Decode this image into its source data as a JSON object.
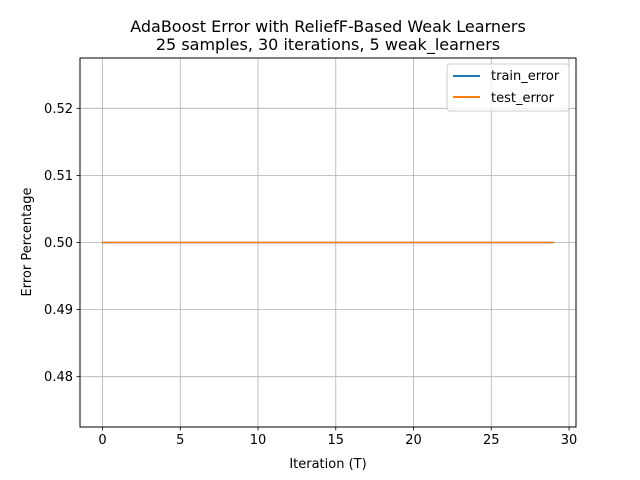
{
  "chart_data": {
    "type": "line",
    "title_line1": "AdaBoost Error with ReliefF-Based Weak Learners",
    "title_line2": "25 samples, 30 iterations, 5 weak_learners",
    "xlabel": "Iteration (T)",
    "ylabel": "Error Percentage",
    "xlim": [
      -1.45,
      30.45
    ],
    "ylim": [
      0.4725,
      0.5275
    ],
    "xticks": [
      0,
      5,
      10,
      15,
      20,
      25,
      30
    ],
    "xtick_labels": [
      "0",
      "5",
      "10",
      "15",
      "20",
      "25",
      "30"
    ],
    "yticks": [
      0.48,
      0.49,
      0.5,
      0.51,
      0.52
    ],
    "ytick_labels": [
      "0.48",
      "0.49",
      "0.50",
      "0.51",
      "0.52"
    ],
    "grid": true,
    "legend_location": "top-right",
    "x": [
      0,
      1,
      2,
      3,
      4,
      5,
      6,
      7,
      8,
      9,
      10,
      11,
      12,
      13,
      14,
      15,
      16,
      17,
      18,
      19,
      20,
      21,
      22,
      23,
      24,
      25,
      26,
      27,
      28,
      29
    ],
    "series": [
      {
        "name": "train_error",
        "color": "#1f77b4",
        "values": [
          0.5,
          0.5,
          0.5,
          0.5,
          0.5,
          0.5,
          0.5,
          0.5,
          0.5,
          0.5,
          0.5,
          0.5,
          0.5,
          0.5,
          0.5,
          0.5,
          0.5,
          0.5,
          0.5,
          0.5,
          0.5,
          0.5,
          0.5,
          0.5,
          0.5,
          0.5,
          0.5,
          0.5,
          0.5,
          0.5
        ]
      },
      {
        "name": "test_error",
        "color": "#ff7f0e",
        "values": [
          0.5,
          0.5,
          0.5,
          0.5,
          0.5,
          0.5,
          0.5,
          0.5,
          0.5,
          0.5,
          0.5,
          0.5,
          0.5,
          0.5,
          0.5,
          0.5,
          0.5,
          0.5,
          0.5,
          0.5,
          0.5,
          0.5,
          0.5,
          0.5,
          0.5,
          0.5,
          0.5,
          0.5,
          0.5,
          0.5
        ]
      }
    ]
  }
}
